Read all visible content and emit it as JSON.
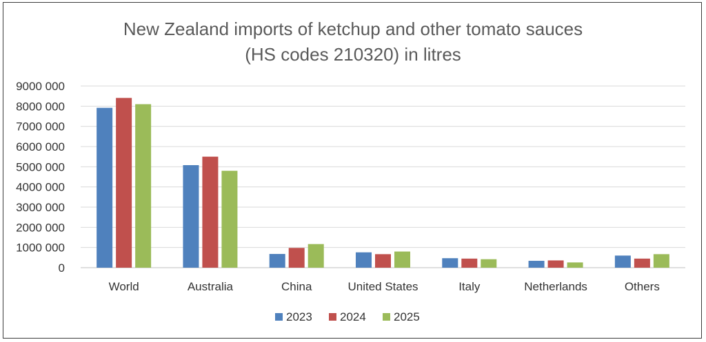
{
  "chart_data": {
    "type": "bar",
    "title_line1": "New Zealand imports of ketchup and other tomato sauces",
    "title_line2": "(HS codes 210320) in litres",
    "categories": [
      "World",
      "Australia",
      "China",
      "United States",
      "Italy",
      "Netherlands",
      "Others"
    ],
    "series": [
      {
        "name": "2023",
        "color": "#4f81bd",
        "values": [
          7920000,
          5080000,
          680000,
          760000,
          470000,
          340000,
          600000
        ]
      },
      {
        "name": "2024",
        "color": "#c0504d",
        "values": [
          8410000,
          5500000,
          980000,
          670000,
          450000,
          360000,
          450000
        ]
      },
      {
        "name": "2025",
        "color": "#9bbb59",
        "values": [
          8100000,
          4800000,
          1170000,
          800000,
          420000,
          260000,
          670000
        ]
      }
    ],
    "ylim": [
      0,
      9000000
    ],
    "yticks": [
      "0",
      "1000 000",
      "2000 000",
      "3000 000",
      "4000 000",
      "5000 000",
      "6000 000",
      "7000 000",
      "8000 000",
      "9000 000"
    ],
    "grid": true,
    "legend_position": "bottom"
  }
}
